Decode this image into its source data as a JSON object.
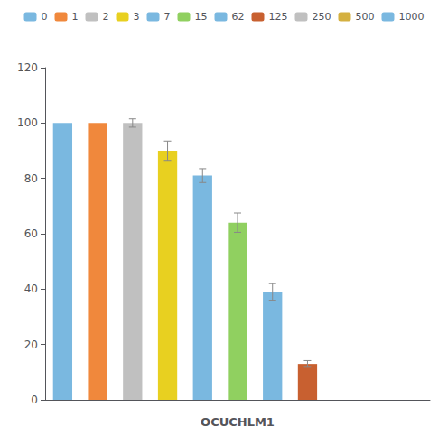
{
  "chart_data": {
    "type": "bar",
    "xlabel": "OCUCHLM1",
    "categories": [
      null,
      null,
      null,
      null,
      null,
      null,
      null,
      null,
      null,
      null,
      null
    ],
    "series": [
      {
        "name": "0",
        "color": "#7ab8e0",
        "values": [
          100,
          null,
          null,
          null,
          null,
          null,
          null,
          null,
          null,
          null,
          null
        ],
        "errors": [
          0.0,
          null,
          null,
          null,
          null,
          null,
          null,
          null,
          null,
          null,
          null
        ]
      },
      {
        "name": "1",
        "color": "#f0883c",
        "values": [
          null,
          100,
          null,
          null,
          null,
          null,
          null,
          null,
          null,
          null,
          null
        ],
        "errors": [
          null,
          0.0,
          null,
          null,
          null,
          null,
          null,
          null,
          null,
          null,
          null
        ]
      },
      {
        "name": "2",
        "color": "#c0c0c0",
        "values": [
          null,
          null,
          100,
          null,
          null,
          null,
          null,
          null,
          null,
          null,
          null
        ],
        "errors": [
          null,
          null,
          1.5,
          null,
          null,
          null,
          null,
          null,
          null,
          null,
          null
        ]
      },
      {
        "name": "3",
        "color": "#e8d020",
        "values": [
          null,
          null,
          null,
          90,
          null,
          null,
          null,
          null,
          null,
          null,
          null
        ],
        "errors": [
          null,
          null,
          null,
          3.5,
          null,
          null,
          null,
          null,
          null,
          null,
          null
        ]
      },
      {
        "name": "7",
        "color": "#7ab8e0",
        "values": [
          null,
          null,
          null,
          null,
          81,
          null,
          null,
          null,
          null,
          null,
          null
        ],
        "errors": [
          null,
          null,
          null,
          null,
          2.5,
          null,
          null,
          null,
          null,
          null,
          null
        ]
      },
      {
        "name": "15",
        "color": "#90d060",
        "values": [
          null,
          null,
          null,
          null,
          null,
          64,
          null,
          null,
          null,
          null,
          null
        ],
        "errors": [
          null,
          null,
          null,
          null,
          null,
          3.5,
          null,
          null,
          null,
          null,
          null
        ]
      },
      {
        "name": "62",
        "color": "#7ab8e0",
        "values": [
          null,
          null,
          null,
          null,
          null,
          null,
          39,
          null,
          null,
          null,
          null
        ],
        "errors": [
          null,
          null,
          null,
          null,
          null,
          null,
          3.0,
          null,
          null,
          null,
          null
        ]
      },
      {
        "name": "125",
        "color": "#c86030",
        "values": [
          null,
          null,
          null,
          null,
          null,
          null,
          null,
          13,
          null,
          null,
          null
        ],
        "errors": [
          null,
          null,
          null,
          null,
          null,
          null,
          null,
          1.2,
          null,
          null,
          null
        ]
      },
      {
        "name": "250",
        "color": "#c0c0c0",
        "values": [
          null,
          null,
          null,
          null,
          null,
          null,
          null,
          null,
          null,
          null,
          null
        ],
        "errors": [
          null,
          null,
          null,
          null,
          null,
          null,
          null,
          null,
          null,
          null,
          null
        ]
      },
      {
        "name": "500",
        "color": "#d4b040",
        "values": [
          null,
          null,
          null,
          null,
          null,
          null,
          null,
          null,
          null,
          null,
          null
        ],
        "errors": [
          null,
          null,
          null,
          null,
          null,
          null,
          null,
          null,
          null,
          null,
          null
        ]
      },
      {
        "name": "1000",
        "color": "#7ab8e0",
        "values": [
          null,
          null,
          null,
          null,
          null,
          null,
          null,
          null,
          null,
          null,
          null
        ],
        "errors": [
          null,
          null,
          null,
          null,
          null,
          null,
          null,
          null,
          null,
          null,
          null
        ]
      }
    ],
    "ylim": [
      0,
      120
    ],
    "yticks": [
      0,
      20,
      40,
      60,
      80,
      100,
      120
    ],
    "grid": false,
    "legend": "top",
    "tick_labels": "y"
  }
}
